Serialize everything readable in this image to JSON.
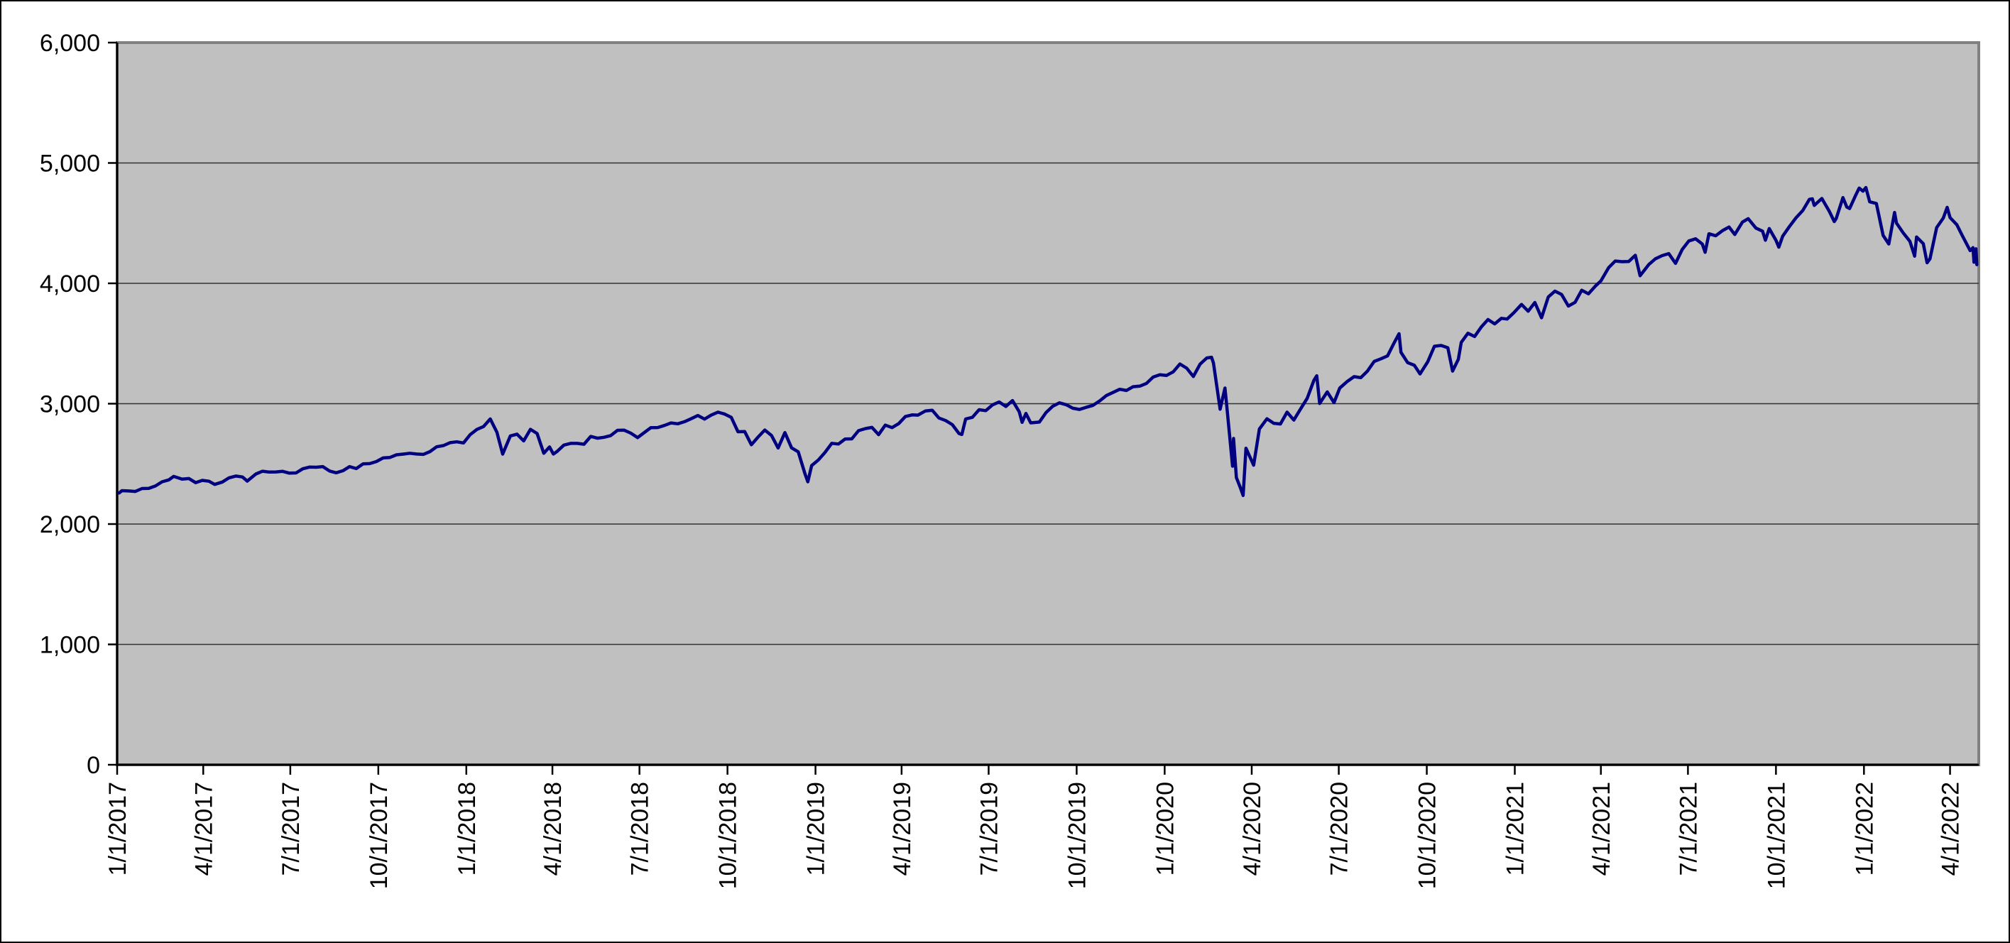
{
  "page": {
    "background": "#ffffff",
    "outer_border_color": "#000000"
  },
  "chart_data": {
    "type": "line",
    "title": "",
    "xlabel": "",
    "ylabel": "",
    "legend": "none",
    "grid": "horizontal",
    "ylim": [
      0,
      6000
    ],
    "y_tick_values": [
      0,
      1000,
      2000,
      3000,
      4000,
      5000,
      6000
    ],
    "y_tick_labels": [
      "0",
      "1,000",
      "2,000",
      "3,000",
      "4,000",
      "5,000",
      "6,000"
    ],
    "x_tick_labels": [
      "1/1/2017",
      "4/1/2017",
      "7/1/2017",
      "10/1/2017",
      "1/1/2018",
      "4/1/2018",
      "7/1/2018",
      "10/1/2018",
      "1/1/2019",
      "4/1/2019",
      "7/1/2019",
      "10/1/2019",
      "1/1/2020",
      "4/1/2020",
      "7/1/2020",
      "10/1/2020",
      "1/1/2021",
      "4/1/2021",
      "7/1/2021",
      "10/1/2021",
      "1/1/2022",
      "4/1/2022"
    ],
    "x_domain": [
      "2017-01-01",
      "2022-05-01"
    ],
    "colors": {
      "line": "#000080",
      "plot_background": "#c0c0c0",
      "plot_border": "#808080",
      "gridline": "#333333",
      "axis": "#000000",
      "tick_label": "#000000"
    },
    "points": [
      [
        "2017-01-03",
        2258
      ],
      [
        "2017-01-06",
        2277
      ],
      [
        "2017-01-13",
        2275
      ],
      [
        "2017-01-20",
        2271
      ],
      [
        "2017-01-27",
        2295
      ],
      [
        "2017-02-03",
        2297
      ],
      [
        "2017-02-10",
        2316
      ],
      [
        "2017-02-17",
        2351
      ],
      [
        "2017-02-24",
        2367
      ],
      [
        "2017-03-01",
        2396
      ],
      [
        "2017-03-10",
        2373
      ],
      [
        "2017-03-17",
        2378
      ],
      [
        "2017-03-24",
        2344
      ],
      [
        "2017-03-31",
        2363
      ],
      [
        "2017-04-07",
        2356
      ],
      [
        "2017-04-13",
        2329
      ],
      [
        "2017-04-21",
        2349
      ],
      [
        "2017-04-28",
        2384
      ],
      [
        "2017-05-05",
        2399
      ],
      [
        "2017-05-12",
        2391
      ],
      [
        "2017-05-17",
        2357
      ],
      [
        "2017-05-26",
        2416
      ],
      [
        "2017-06-02",
        2439
      ],
      [
        "2017-06-09",
        2432
      ],
      [
        "2017-06-16",
        2433
      ],
      [
        "2017-06-23",
        2438
      ],
      [
        "2017-06-30",
        2423
      ],
      [
        "2017-07-07",
        2425
      ],
      [
        "2017-07-14",
        2459
      ],
      [
        "2017-07-21",
        2473
      ],
      [
        "2017-07-28",
        2472
      ],
      [
        "2017-08-04",
        2477
      ],
      [
        "2017-08-11",
        2441
      ],
      [
        "2017-08-18",
        2426
      ],
      [
        "2017-08-25",
        2443
      ],
      [
        "2017-09-01",
        2477
      ],
      [
        "2017-09-08",
        2461
      ],
      [
        "2017-09-15",
        2500
      ],
      [
        "2017-09-22",
        2502
      ],
      [
        "2017-09-29",
        2519
      ],
      [
        "2017-10-06",
        2549
      ],
      [
        "2017-10-13",
        2553
      ],
      [
        "2017-10-20",
        2575
      ],
      [
        "2017-10-27",
        2581
      ],
      [
        "2017-11-03",
        2588
      ],
      [
        "2017-11-10",
        2582
      ],
      [
        "2017-11-17",
        2579
      ],
      [
        "2017-11-24",
        2602
      ],
      [
        "2017-12-01",
        2642
      ],
      [
        "2017-12-08",
        2652
      ],
      [
        "2017-12-15",
        2676
      ],
      [
        "2017-12-22",
        2683
      ],
      [
        "2017-12-29",
        2674
      ],
      [
        "2018-01-05",
        2743
      ],
      [
        "2018-01-12",
        2786
      ],
      [
        "2018-01-19",
        2810
      ],
      [
        "2018-01-26",
        2873
      ],
      [
        "2018-02-02",
        2762
      ],
      [
        "2018-02-08",
        2581
      ],
      [
        "2018-02-16",
        2732
      ],
      [
        "2018-02-23",
        2747
      ],
      [
        "2018-03-02",
        2691
      ],
      [
        "2018-03-09",
        2787
      ],
      [
        "2018-03-16",
        2752
      ],
      [
        "2018-03-23",
        2588
      ],
      [
        "2018-03-29",
        2641
      ],
      [
        "2018-04-02",
        2582
      ],
      [
        "2018-04-06",
        2604
      ],
      [
        "2018-04-13",
        2656
      ],
      [
        "2018-04-20",
        2670
      ],
      [
        "2018-04-27",
        2670
      ],
      [
        "2018-05-04",
        2663
      ],
      [
        "2018-05-11",
        2728
      ],
      [
        "2018-05-18",
        2713
      ],
      [
        "2018-05-25",
        2721
      ],
      [
        "2018-06-01",
        2735
      ],
      [
        "2018-06-08",
        2779
      ],
      [
        "2018-06-15",
        2780
      ],
      [
        "2018-06-22",
        2755
      ],
      [
        "2018-06-29",
        2718
      ],
      [
        "2018-07-06",
        2760
      ],
      [
        "2018-07-13",
        2801
      ],
      [
        "2018-07-20",
        2802
      ],
      [
        "2018-07-27",
        2819
      ],
      [
        "2018-08-03",
        2840
      ],
      [
        "2018-08-10",
        2833
      ],
      [
        "2018-08-17",
        2850
      ],
      [
        "2018-08-24",
        2875
      ],
      [
        "2018-08-31",
        2902
      ],
      [
        "2018-09-07",
        2872
      ],
      [
        "2018-09-14",
        2905
      ],
      [
        "2018-09-21",
        2930
      ],
      [
        "2018-09-28",
        2914
      ],
      [
        "2018-10-05",
        2886
      ],
      [
        "2018-10-12",
        2767
      ],
      [
        "2018-10-19",
        2768
      ],
      [
        "2018-10-26",
        2659
      ],
      [
        "2018-11-02",
        2723
      ],
      [
        "2018-11-09",
        2781
      ],
      [
        "2018-11-16",
        2736
      ],
      [
        "2018-11-23",
        2632
      ],
      [
        "2018-11-30",
        2760
      ],
      [
        "2018-12-07",
        2633
      ],
      [
        "2018-12-14",
        2600
      ],
      [
        "2018-12-21",
        2417
      ],
      [
        "2018-12-24",
        2351
      ],
      [
        "2018-12-28",
        2486
      ],
      [
        "2019-01-04",
        2532
      ],
      [
        "2019-01-11",
        2596
      ],
      [
        "2019-01-18",
        2671
      ],
      [
        "2019-01-25",
        2665
      ],
      [
        "2019-02-01",
        2707
      ],
      [
        "2019-02-08",
        2708
      ],
      [
        "2019-02-15",
        2776
      ],
      [
        "2019-02-22",
        2793
      ],
      [
        "2019-03-01",
        2803
      ],
      [
        "2019-03-08",
        2743
      ],
      [
        "2019-03-15",
        2822
      ],
      [
        "2019-03-22",
        2801
      ],
      [
        "2019-03-29",
        2834
      ],
      [
        "2019-04-05",
        2893
      ],
      [
        "2019-04-12",
        2907
      ],
      [
        "2019-04-18",
        2905
      ],
      [
        "2019-04-26",
        2940
      ],
      [
        "2019-05-03",
        2946
      ],
      [
        "2019-05-10",
        2881
      ],
      [
        "2019-05-17",
        2860
      ],
      [
        "2019-05-24",
        2826
      ],
      [
        "2019-05-31",
        2752
      ],
      [
        "2019-06-03",
        2744
      ],
      [
        "2019-06-07",
        2873
      ],
      [
        "2019-06-14",
        2887
      ],
      [
        "2019-06-21",
        2950
      ],
      [
        "2019-06-28",
        2942
      ],
      [
        "2019-07-05",
        2990
      ],
      [
        "2019-07-12",
        3014
      ],
      [
        "2019-07-19",
        2977
      ],
      [
        "2019-07-26",
        3026
      ],
      [
        "2019-08-02",
        2932
      ],
      [
        "2019-08-05",
        2845
      ],
      [
        "2019-08-09",
        2919
      ],
      [
        "2019-08-14",
        2841
      ],
      [
        "2019-08-23",
        2847
      ],
      [
        "2019-08-30",
        2926
      ],
      [
        "2019-09-06",
        2979
      ],
      [
        "2019-09-13",
        3007
      ],
      [
        "2019-09-20",
        2992
      ],
      [
        "2019-09-27",
        2962
      ],
      [
        "2019-10-04",
        2952
      ],
      [
        "2019-10-11",
        2970
      ],
      [
        "2019-10-18",
        2986
      ],
      [
        "2019-10-25",
        3023
      ],
      [
        "2019-11-01",
        3067
      ],
      [
        "2019-11-08",
        3093
      ],
      [
        "2019-11-15",
        3120
      ],
      [
        "2019-11-22",
        3110
      ],
      [
        "2019-11-29",
        3141
      ],
      [
        "2019-12-06",
        3146
      ],
      [
        "2019-12-13",
        3169
      ],
      [
        "2019-12-20",
        3221
      ],
      [
        "2019-12-27",
        3240
      ],
      [
        "2020-01-03",
        3235
      ],
      [
        "2020-01-10",
        3265
      ],
      [
        "2020-01-17",
        3330
      ],
      [
        "2020-01-24",
        3295
      ],
      [
        "2020-01-31",
        3226
      ],
      [
        "2020-02-07",
        3328
      ],
      [
        "2020-02-14",
        3380
      ],
      [
        "2020-02-19",
        3386
      ],
      [
        "2020-02-21",
        3338
      ],
      [
        "2020-02-28",
        2954
      ],
      [
        "2020-03-04",
        3130
      ],
      [
        "2020-03-06",
        2972
      ],
      [
        "2020-03-12",
        2481
      ],
      [
        "2020-03-13",
        2711
      ],
      [
        "2020-03-16",
        2386
      ],
      [
        "2020-03-20",
        2305
      ],
      [
        "2020-03-23",
        2237
      ],
      [
        "2020-03-26",
        2630
      ],
      [
        "2020-04-03",
        2489
      ],
      [
        "2020-04-09",
        2790
      ],
      [
        "2020-04-17",
        2875
      ],
      [
        "2020-04-24",
        2837
      ],
      [
        "2020-05-01",
        2831
      ],
      [
        "2020-05-08",
        2930
      ],
      [
        "2020-05-15",
        2864
      ],
      [
        "2020-05-22",
        2955
      ],
      [
        "2020-05-29",
        3044
      ],
      [
        "2020-06-05",
        3194
      ],
      [
        "2020-06-08",
        3232
      ],
      [
        "2020-06-11",
        3002
      ],
      [
        "2020-06-19",
        3098
      ],
      [
        "2020-06-26",
        3009
      ],
      [
        "2020-07-02",
        3130
      ],
      [
        "2020-07-10",
        3185
      ],
      [
        "2020-07-17",
        3225
      ],
      [
        "2020-07-24",
        3216
      ],
      [
        "2020-07-31",
        3271
      ],
      [
        "2020-08-07",
        3351
      ],
      [
        "2020-08-14",
        3373
      ],
      [
        "2020-08-21",
        3397
      ],
      [
        "2020-08-28",
        3508
      ],
      [
        "2020-09-02",
        3581
      ],
      [
        "2020-09-04",
        3427
      ],
      [
        "2020-09-11",
        3341
      ],
      [
        "2020-09-18",
        3319
      ],
      [
        "2020-09-24",
        3247
      ],
      [
        "2020-10-02",
        3348
      ],
      [
        "2020-10-09",
        3477
      ],
      [
        "2020-10-16",
        3484
      ],
      [
        "2020-10-23",
        3465
      ],
      [
        "2020-10-28",
        3271
      ],
      [
        "2020-11-03",
        3369
      ],
      [
        "2020-11-06",
        3509
      ],
      [
        "2020-11-13",
        3585
      ],
      [
        "2020-11-20",
        3558
      ],
      [
        "2020-11-27",
        3638
      ],
      [
        "2020-12-04",
        3699
      ],
      [
        "2020-12-11",
        3663
      ],
      [
        "2020-12-18",
        3709
      ],
      [
        "2020-12-24",
        3703
      ],
      [
        "2020-12-31",
        3756
      ],
      [
        "2021-01-08",
        3825
      ],
      [
        "2021-01-15",
        3768
      ],
      [
        "2021-01-22",
        3841
      ],
      [
        "2021-01-29",
        3714
      ],
      [
        "2021-02-05",
        3887
      ],
      [
        "2021-02-12",
        3935
      ],
      [
        "2021-02-19",
        3907
      ],
      [
        "2021-02-26",
        3811
      ],
      [
        "2021-03-05",
        3842
      ],
      [
        "2021-03-12",
        3943
      ],
      [
        "2021-03-19",
        3913
      ],
      [
        "2021-03-26",
        3975
      ],
      [
        "2021-04-01",
        4020
      ],
      [
        "2021-04-09",
        4129
      ],
      [
        "2021-04-16",
        4185
      ],
      [
        "2021-04-23",
        4180
      ],
      [
        "2021-04-30",
        4181
      ],
      [
        "2021-05-07",
        4233
      ],
      [
        "2021-05-12",
        4063
      ],
      [
        "2021-05-21",
        4156
      ],
      [
        "2021-05-28",
        4204
      ],
      [
        "2021-06-04",
        4230
      ],
      [
        "2021-06-11",
        4247
      ],
      [
        "2021-06-18",
        4166
      ],
      [
        "2021-06-25",
        4281
      ],
      [
        "2021-07-02",
        4352
      ],
      [
        "2021-07-09",
        4370
      ],
      [
        "2021-07-16",
        4327
      ],
      [
        "2021-07-19",
        4258
      ],
      [
        "2021-07-23",
        4412
      ],
      [
        "2021-07-30",
        4395
      ],
      [
        "2021-08-06",
        4437
      ],
      [
        "2021-08-13",
        4468
      ],
      [
        "2021-08-19",
        4406
      ],
      [
        "2021-08-27",
        4509
      ],
      [
        "2021-09-02",
        4537
      ],
      [
        "2021-09-10",
        4459
      ],
      [
        "2021-09-17",
        4433
      ],
      [
        "2021-09-20",
        4358
      ],
      [
        "2021-09-24",
        4455
      ],
      [
        "2021-10-01",
        4357
      ],
      [
        "2021-10-04",
        4300
      ],
      [
        "2021-10-08",
        4391
      ],
      [
        "2021-10-15",
        4471
      ],
      [
        "2021-10-22",
        4545
      ],
      [
        "2021-10-29",
        4605
      ],
      [
        "2021-11-05",
        4698
      ],
      [
        "2021-11-08",
        4702
      ],
      [
        "2021-11-10",
        4647
      ],
      [
        "2021-11-18",
        4705
      ],
      [
        "2021-11-26",
        4595
      ],
      [
        "2021-12-01",
        4513
      ],
      [
        "2021-12-03",
        4538
      ],
      [
        "2021-12-10",
        4712
      ],
      [
        "2021-12-14",
        4634
      ],
      [
        "2021-12-17",
        4621
      ],
      [
        "2021-12-23",
        4726
      ],
      [
        "2021-12-27",
        4791
      ],
      [
        "2021-12-31",
        4766
      ],
      [
        "2022-01-03",
        4796
      ],
      [
        "2022-01-07",
        4677
      ],
      [
        "2022-01-14",
        4663
      ],
      [
        "2022-01-21",
        4398
      ],
      [
        "2022-01-27",
        4327
      ],
      [
        "2022-02-02",
        4589
      ],
      [
        "2022-02-04",
        4501
      ],
      [
        "2022-02-11",
        4419
      ],
      [
        "2022-02-18",
        4349
      ],
      [
        "2022-02-23",
        4226
      ],
      [
        "2022-02-25",
        4385
      ],
      [
        "2022-03-04",
        4329
      ],
      [
        "2022-03-08",
        4171
      ],
      [
        "2022-03-11",
        4204
      ],
      [
        "2022-03-18",
        4463
      ],
      [
        "2022-03-25",
        4543
      ],
      [
        "2022-03-29",
        4631
      ],
      [
        "2022-04-01",
        4546
      ],
      [
        "2022-04-08",
        4488
      ],
      [
        "2022-04-14",
        4393
      ],
      [
        "2022-04-22",
        4272
      ],
      [
        "2022-04-25",
        4296
      ],
      [
        "2022-04-26",
        4175
      ],
      [
        "2022-04-28",
        4287
      ],
      [
        "2022-04-29",
        4155
      ]
    ]
  }
}
